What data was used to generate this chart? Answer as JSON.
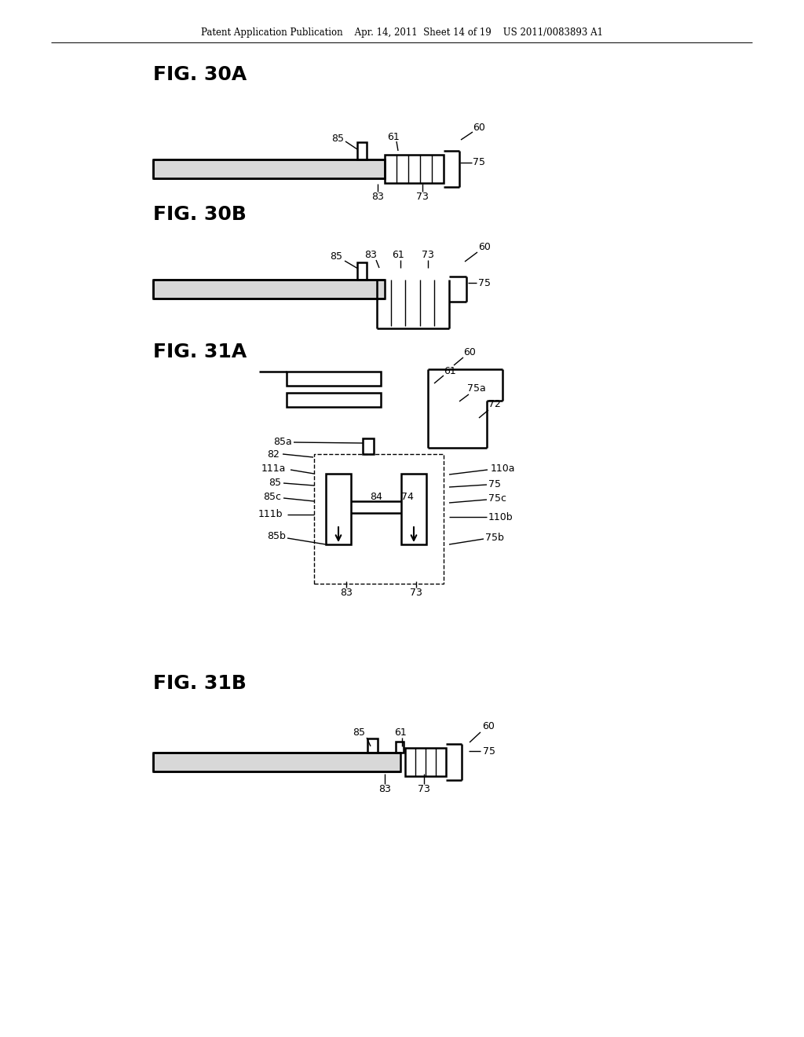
{
  "bg_color": "#ffffff",
  "header": "Patent Application Publication    Apr. 14, 2011  Sheet 14 of 19    US 2011/0083893 A1",
  "fig30A": "FIG. 30A",
  "fig30B": "FIG. 30B",
  "fig31A": "FIG. 31A",
  "fig31B": "FIG. 31B",
  "lw": 1.8,
  "lw_thin": 1.0,
  "fs": 9,
  "fs_fig": 18
}
